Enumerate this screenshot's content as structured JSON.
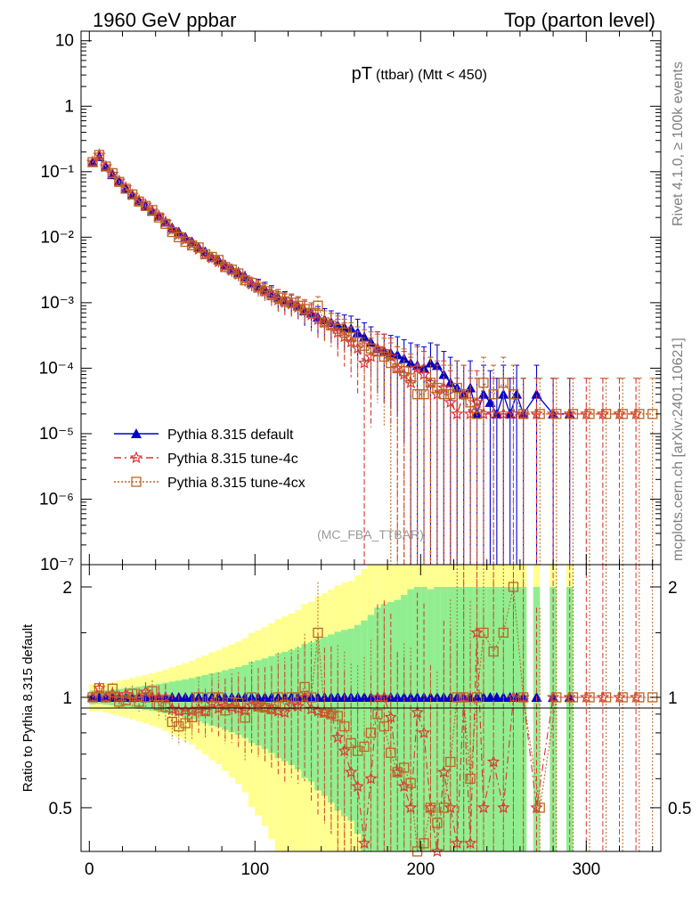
{
  "header": {
    "left": "1960 GeV ppbar",
    "right": "Top (parton level)"
  },
  "side": {
    "rivet": "Rivet 4.1.0, ≥ 100k events",
    "mcplots": "mcplots.cern.ch [arXiv:2401.10621]"
  },
  "chart_data": {
    "type": "line",
    "title_main": "pT",
    "title_sub": "(ttbar) (Mtt < 450)",
    "analysis": "(MC_FBA_TTBAR)",
    "xlabel": "",
    "ylabel_ratio": "Ratio to Pythia 8.315 default",
    "xlim": [
      -5,
      345
    ],
    "ylim_main": [
      1e-07,
      14
    ],
    "ylim_ratio": [
      0.38,
      2.3
    ],
    "x_ticks": [
      "0",
      "100",
      "200",
      "300"
    ],
    "y_ticks_main": [
      "10",
      "1",
      "10⁻¹",
      "10⁻²",
      "10⁻³",
      "10⁻⁴",
      "10⁻⁵",
      "10⁻⁶",
      "10⁻⁷"
    ],
    "y_ticks_ratio": [
      "2",
      "1",
      "0.5"
    ],
    "legend": [
      "Pythia 8.315 default",
      "Pythia 8.315 tune-4c",
      "Pythia 8.315 tune-4cx"
    ],
    "colors": {
      "default": "#0000cc",
      "tune4c": "#dd3333",
      "tune4cx": "#bb6622",
      "band_green": "#90ee90",
      "band_yellow": "#ffff90"
    },
    "series": [
      {
        "name": "Pythia 8.315 default",
        "x": [
          2,
          6,
          10,
          14,
          18,
          22,
          26,
          30,
          34,
          38,
          42,
          46,
          50,
          54,
          58,
          62,
          66,
          70,
          74,
          78,
          82,
          86,
          90,
          94,
          98,
          102,
          106,
          110,
          114,
          118,
          122,
          126,
          130,
          134,
          138,
          142,
          146,
          150,
          154,
          158,
          162,
          166,
          170,
          174,
          178,
          182,
          186,
          190,
          194,
          198,
          202,
          206,
          210,
          214,
          218,
          222,
          226,
          230,
          234,
          238,
          242,
          246,
          250,
          254,
          258,
          262,
          270,
          280,
          290
        ],
        "y": [
          0.14,
          0.17,
          0.12,
          0.09,
          0.072,
          0.056,
          0.044,
          0.036,
          0.03,
          0.025,
          0.021,
          0.017,
          0.014,
          0.012,
          0.01,
          0.0085,
          0.007,
          0.006,
          0.005,
          0.0045,
          0.0038,
          0.0033,
          0.0029,
          0.0025,
          0.002,
          0.0018,
          0.0016,
          0.0014,
          0.0012,
          0.0011,
          0.001,
          0.0009,
          0.00075,
          0.0007,
          0.0006,
          0.00055,
          0.0005,
          0.00045,
          0.00042,
          0.0004,
          0.00035,
          0.0003,
          0.00025,
          0.0002,
          0.00018,
          0.00017,
          0.00016,
          0.00014,
          0.00012,
          0.00011,
          0.0001,
          0.00012,
          0.00011,
          8e-05,
          6e-05,
          5e-05,
          4e-05,
          5e-05,
          2e-05,
          4e-05,
          3e-05,
          2e-05,
          4e-05,
          2e-05,
          4e-05,
          2e-05,
          4e-05,
          2e-05,
          2e-05
        ]
      },
      {
        "name": "Pythia 8.315 tune-4c",
        "x": [
          2,
          6,
          10,
          14,
          18,
          22,
          26,
          30,
          34,
          38,
          42,
          46,
          50,
          54,
          58,
          62,
          66,
          70,
          74,
          78,
          82,
          86,
          90,
          94,
          98,
          102,
          106,
          110,
          114,
          118,
          122,
          126,
          130,
          134,
          138,
          142,
          146,
          150,
          154,
          158,
          162,
          166,
          170,
          174,
          178,
          182,
          186,
          190,
          194,
          198,
          202,
          206,
          210,
          214,
          218,
          222,
          226,
          230,
          234,
          238,
          244,
          250,
          256,
          262,
          270,
          280,
          290,
          300,
          310,
          320,
          330
        ],
        "y": [
          0.14,
          0.18,
          0.12,
          0.092,
          0.072,
          0.057,
          0.044,
          0.036,
          0.031,
          0.025,
          0.021,
          0.017,
          0.013,
          0.011,
          0.0092,
          0.0078,
          0.0065,
          0.0055,
          0.0048,
          0.0042,
          0.0036,
          0.0031,
          0.0027,
          0.0023,
          0.0019,
          0.0017,
          0.0015,
          0.0013,
          0.0011,
          0.001,
          0.00095,
          0.00085,
          0.00075,
          0.00065,
          0.00055,
          0.0005,
          0.00045,
          0.00035,
          0.0003,
          0.00025,
          0.0002,
          0.00012,
          0.00015,
          0.0002,
          0.00018,
          0.00015,
          0.0001,
          8e-05,
          6e-05,
          0.0001,
          8e-05,
          6e-05,
          4e-05,
          5e-05,
          3e-05,
          2e-05,
          4e-05,
          2e-05,
          3e-05,
          2e-05,
          2e-05,
          2e-05,
          2e-05,
          2e-05,
          2e-05,
          2e-05,
          2e-05,
          2e-05,
          2e-05,
          2e-05,
          2e-05
        ]
      },
      {
        "name": "Pythia 8.315 tune-4cx",
        "x": [
          2,
          6,
          10,
          14,
          18,
          22,
          26,
          30,
          34,
          38,
          42,
          46,
          50,
          54,
          58,
          62,
          66,
          70,
          74,
          78,
          82,
          86,
          90,
          94,
          98,
          102,
          106,
          110,
          114,
          118,
          122,
          126,
          130,
          134,
          138,
          142,
          146,
          150,
          154,
          158,
          162,
          166,
          170,
          174,
          178,
          182,
          186,
          190,
          194,
          198,
          202,
          206,
          210,
          214,
          218,
          222,
          226,
          230,
          234,
          238,
          244,
          250,
          256,
          262,
          272,
          282,
          292,
          302,
          312,
          322,
          332,
          340
        ],
        "y": [
          0.14,
          0.18,
          0.12,
          0.095,
          0.07,
          0.055,
          0.045,
          0.035,
          0.03,
          0.026,
          0.02,
          0.016,
          0.012,
          0.01,
          0.0085,
          0.0075,
          0.007,
          0.0055,
          0.005,
          0.0045,
          0.0035,
          0.0032,
          0.0028,
          0.0022,
          0.002,
          0.0017,
          0.0015,
          0.0013,
          0.0012,
          0.00105,
          0.001,
          0.0009,
          0.0008,
          0.0007,
          0.0009,
          0.0005,
          0.00045,
          0.0004,
          0.00035,
          0.0003,
          0.00025,
          0.00022,
          0.0002,
          0.00018,
          0.00015,
          0.00012,
          0.0001,
          9e-05,
          7e-05,
          4e-05,
          4e-05,
          6e-05,
          5e-05,
          4e-05,
          4e-05,
          5e-05,
          4e-05,
          3e-05,
          2e-05,
          6e-05,
          4e-05,
          6e-05,
          4e-05,
          2e-05,
          2e-05,
          2e-05,
          2e-05,
          2e-05,
          2e-05,
          2e-05,
          2e-05,
          2e-05
        ]
      }
    ]
  }
}
